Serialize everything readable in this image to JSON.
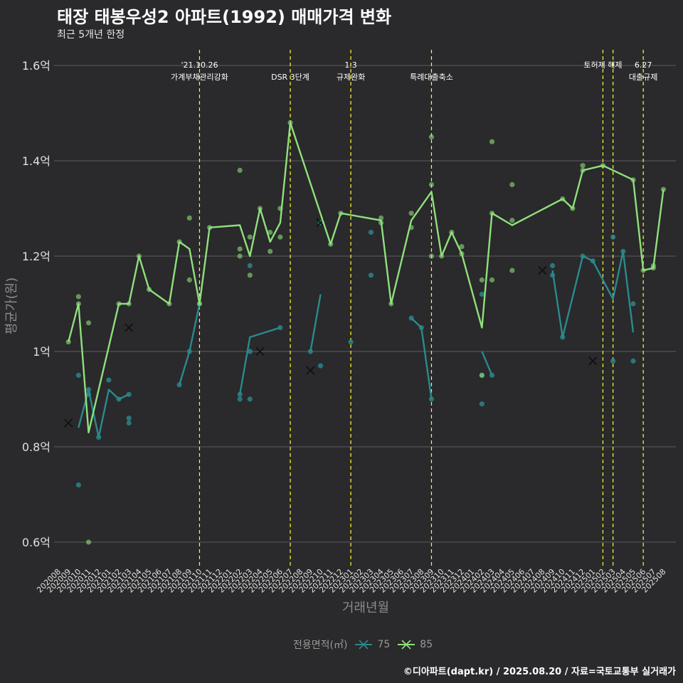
{
  "header": {
    "title": "태장 태봉우성2 아파트(1992) 매매가격 변화",
    "subtitle": "최근 5개년 한정"
  },
  "caption": "©디아파트(dapt.kr) / 2025.08.20 / 자료=국토교통부 실거래가",
  "colors": {
    "background": "#2a292b",
    "s75": "#2a8a8e",
    "s85": "#8fe07c",
    "event": "#ffff33",
    "grid": "#5c5c5c"
  },
  "chart_data": {
    "type": "line",
    "title": "태장 태봉우성2 아파트(1992) 매매가격 변화",
    "subtitle": "최근 5개년 한정",
    "xlabel": "거래년월",
    "ylabel": "평균가(원)",
    "ylim": [
      0.55,
      1.6
    ],
    "yticks": [
      0.6,
      0.8,
      1.0,
      1.2,
      1.4,
      1.6
    ],
    "ytick_labels": [
      "0.6억",
      "0.8억",
      "1억",
      "1.2억",
      "1.4억",
      "1.6억"
    ],
    "grid": true,
    "legend_title": "전용면적(㎡)",
    "legend_position": "bottom",
    "months": [
      "202008",
      "202009",
      "202010",
      "202011",
      "202012",
      "202101",
      "202102",
      "202103",
      "202104",
      "202105",
      "202106",
      "202107",
      "202108",
      "202109",
      "202110",
      "202111",
      "202112",
      "202201",
      "202202",
      "202203",
      "202204",
      "202205",
      "202206",
      "202207",
      "202208",
      "202209",
      "202210",
      "202211",
      "202212",
      "202301",
      "202302",
      "202303",
      "202304",
      "202305",
      "202306",
      "202307",
      "202308",
      "202309",
      "202310",
      "202311",
      "202312",
      "202401",
      "202402",
      "202403",
      "202404",
      "202405",
      "202406",
      "202407",
      "202408",
      "202409",
      "202410",
      "202411",
      "202412",
      "202501",
      "202502",
      "202503",
      "202504",
      "202505",
      "202506",
      "202507",
      "202508"
    ],
    "series": [
      {
        "name": "75",
        "line": [
          {
            "x": "202010",
            "y": 0.84
          },
          {
            "x": "202011",
            "y": 0.92
          },
          {
            "x": "202012",
            "y": 0.82
          },
          {
            "x": "202101",
            "y": 0.92
          },
          {
            "x": "202102",
            "y": 0.9
          },
          {
            "x": "202103",
            "y": 0.91
          },
          null,
          {
            "x": "202108",
            "y": 0.93
          },
          {
            "x": "202109",
            "y": 1.0
          },
          {
            "x": "202110",
            "y": 1.1
          },
          null,
          {
            "x": "202202",
            "y": 0.91
          },
          {
            "x": "202203",
            "y": 1.03
          },
          {
            "x": "202206",
            "y": 1.05
          },
          null,
          {
            "x": "202209",
            "y": 1.0
          },
          {
            "x": "202210",
            "y": 1.12
          },
          null,
          {
            "x": "202307",
            "y": 1.07
          },
          {
            "x": "202308",
            "y": 1.05
          },
          {
            "x": "202309",
            "y": 0.9
          },
          null,
          {
            "x": "202402",
            "y": 1.0
          },
          {
            "x": "202403",
            "y": 0.95
          },
          null,
          {
            "x": "202409",
            "y": 1.17
          },
          {
            "x": "202410",
            "y": 1.03
          },
          {
            "x": "202412",
            "y": 1.2
          },
          {
            "x": "202501",
            "y": 1.19
          },
          {
            "x": "202503",
            "y": 1.11
          },
          {
            "x": "202504",
            "y": 1.21
          },
          {
            "x": "202505",
            "y": 1.04
          }
        ],
        "points": [
          {
            "x": "202010",
            "y": 0.95
          },
          {
            "x": "202010",
            "y": 0.72
          },
          {
            "x": "202011",
            "y": 0.91
          },
          {
            "x": "202011",
            "y": 0.92
          },
          {
            "x": "202012",
            "y": 0.82
          },
          {
            "x": "202101",
            "y": 0.94
          },
          {
            "x": "202102",
            "y": 0.9
          },
          {
            "x": "202103",
            "y": 0.91
          },
          {
            "x": "202103",
            "y": 0.86
          },
          {
            "x": "202103",
            "y": 0.85
          },
          {
            "x": "202108",
            "y": 0.93
          },
          {
            "x": "202109",
            "y": 1.0
          },
          {
            "x": "202110",
            "y": 1.1
          },
          {
            "x": "202202",
            "y": 0.9
          },
          {
            "x": "202202",
            "y": 0.91
          },
          {
            "x": "202203",
            "y": 1.0
          },
          {
            "x": "202203",
            "y": 0.9
          },
          {
            "x": "202203",
            "y": 1.18
          },
          {
            "x": "202206",
            "y": 1.05
          },
          {
            "x": "202209",
            "y": 1.0
          },
          {
            "x": "202210",
            "y": 0.97
          },
          {
            "x": "202210",
            "y": 1.27
          },
          {
            "x": "202301",
            "y": 1.02
          },
          {
            "x": "202303",
            "y": 1.25
          },
          {
            "x": "202303",
            "y": 1.16
          },
          {
            "x": "202307",
            "y": 1.07
          },
          {
            "x": "202308",
            "y": 1.05
          },
          {
            "x": "202309",
            "y": 0.9
          },
          {
            "x": "202402",
            "y": 0.89
          },
          {
            "x": "202402",
            "y": 0.95
          },
          {
            "x": "202402",
            "y": 1.12
          },
          {
            "x": "202403",
            "y": 0.95
          },
          {
            "x": "202409",
            "y": 1.18
          },
          {
            "x": "202409",
            "y": 1.16
          },
          {
            "x": "202410",
            "y": 1.03
          },
          {
            "x": "202412",
            "y": 1.2
          },
          {
            "x": "202501",
            "y": 1.19
          },
          {
            "x": "202503",
            "y": 0.98
          },
          {
            "x": "202503",
            "y": 1.24
          },
          {
            "x": "202504",
            "y": 1.21
          },
          {
            "x": "202505",
            "y": 0.98
          },
          {
            "x": "202505",
            "y": 1.1
          }
        ],
        "crosses": [
          {
            "x": "202103",
            "y": 1.05
          },
          {
            "x": "202210",
            "y": 1.27
          },
          {
            "x": "202408",
            "y": 1.17
          }
        ]
      },
      {
        "name": "85",
        "line": [
          {
            "x": "202009",
            "y": 1.02
          },
          {
            "x": "202010",
            "y": 1.1
          },
          {
            "x": "202011",
            "y": 0.83
          },
          {
            "x": "202102",
            "y": 1.1
          },
          {
            "x": "202103",
            "y": 1.1
          },
          {
            "x": "202104",
            "y": 1.2
          },
          {
            "x": "202105",
            "y": 1.13
          },
          {
            "x": "202107",
            "y": 1.1
          },
          {
            "x": "202108",
            "y": 1.23
          },
          {
            "x": "202109",
            "y": 1.215
          },
          {
            "x": "202110",
            "y": 1.1
          },
          {
            "x": "202111",
            "y": 1.26
          },
          {
            "x": "202202",
            "y": 1.265
          },
          {
            "x": "202203",
            "y": 1.2
          },
          {
            "x": "202204",
            "y": 1.3
          },
          {
            "x": "202205",
            "y": 1.23
          },
          {
            "x": "202206",
            "y": 1.27
          },
          {
            "x": "202207",
            "y": 1.48
          },
          {
            "x": "202211",
            "y": 1.225
          },
          {
            "x": "202212",
            "y": 1.29
          },
          {
            "x": "202304",
            "y": 1.275
          },
          {
            "x": "202305",
            "y": 1.1
          },
          {
            "x": "202307",
            "y": 1.275
          },
          {
            "x": "202309",
            "y": 1.335
          },
          {
            "x": "202310",
            "y": 1.2
          },
          {
            "x": "202311",
            "y": 1.25
          },
          {
            "x": "202312",
            "y": 1.205
          },
          {
            "x": "202402",
            "y": 1.05
          },
          {
            "x": "202403",
            "y": 1.29
          },
          {
            "x": "202405",
            "y": 1.265
          },
          {
            "x": "202410",
            "y": 1.32
          },
          {
            "x": "202411",
            "y": 1.3
          },
          {
            "x": "202412",
            "y": 1.38
          },
          {
            "x": "202502",
            "y": 1.39
          },
          {
            "x": "202505",
            "y": 1.36
          },
          {
            "x": "202506",
            "y": 1.17
          },
          {
            "x": "202507",
            "y": 1.175
          },
          {
            "x": "202508",
            "y": 1.34
          }
        ],
        "points": [
          {
            "x": "202009",
            "y": 1.02
          },
          {
            "x": "202010",
            "y": 1.1
          },
          {
            "x": "202010",
            "y": 1.115
          },
          {
            "x": "202011",
            "y": 1.06
          },
          {
            "x": "202011",
            "y": 0.6
          },
          {
            "x": "202102",
            "y": 1.1
          },
          {
            "x": "202103",
            "y": 1.1
          },
          {
            "x": "202104",
            "y": 1.2
          },
          {
            "x": "202105",
            "y": 1.13
          },
          {
            "x": "202107",
            "y": 1.1
          },
          {
            "x": "202108",
            "y": 1.23
          },
          {
            "x": "202109",
            "y": 1.28
          },
          {
            "x": "202109",
            "y": 1.15
          },
          {
            "x": "202110",
            "y": 1.1
          },
          {
            "x": "202111",
            "y": 1.26
          },
          {
            "x": "202202",
            "y": 1.38
          },
          {
            "x": "202202",
            "y": 1.215
          },
          {
            "x": "202202",
            "y": 1.2
          },
          {
            "x": "202203",
            "y": 1.24
          },
          {
            "x": "202203",
            "y": 1.16
          },
          {
            "x": "202204",
            "y": 1.3
          },
          {
            "x": "202205",
            "y": 1.25
          },
          {
            "x": "202205",
            "y": 1.21
          },
          {
            "x": "202206",
            "y": 1.3
          },
          {
            "x": "202206",
            "y": 1.24
          },
          {
            "x": "202207",
            "y": 1.48
          },
          {
            "x": "202211",
            "y": 1.225
          },
          {
            "x": "202212",
            "y": 1.29
          },
          {
            "x": "202304",
            "y": 1.28
          },
          {
            "x": "202304",
            "y": 1.27
          },
          {
            "x": "202305",
            "y": 1.1
          },
          {
            "x": "202307",
            "y": 1.29
          },
          {
            "x": "202307",
            "y": 1.26
          },
          {
            "x": "202309",
            "y": 1.45
          },
          {
            "x": "202309",
            "y": 1.35
          },
          {
            "x": "202309",
            "y": 1.2
          },
          {
            "x": "202310",
            "y": 1.2
          },
          {
            "x": "202311",
            "y": 1.25
          },
          {
            "x": "202312",
            "y": 1.22
          },
          {
            "x": "202312",
            "y": 1.205
          },
          {
            "x": "202402",
            "y": 1.15
          },
          {
            "x": "202402",
            "y": 0.95
          },
          {
            "x": "202403",
            "y": 1.44
          },
          {
            "x": "202403",
            "y": 1.15
          },
          {
            "x": "202403",
            "y": 1.29
          },
          {
            "x": "202405",
            "y": 1.35
          },
          {
            "x": "202405",
            "y": 1.275
          },
          {
            "x": "202405",
            "y": 1.17
          },
          {
            "x": "202410",
            "y": 1.32
          },
          {
            "x": "202411",
            "y": 1.3
          },
          {
            "x": "202412",
            "y": 1.39
          },
          {
            "x": "202412",
            "y": 1.38
          },
          {
            "x": "202502",
            "y": 1.39
          },
          {
            "x": "202505",
            "y": 1.36
          },
          {
            "x": "202506",
            "y": 1.17
          },
          {
            "x": "202507",
            "y": 1.18
          },
          {
            "x": "202507",
            "y": 1.175
          },
          {
            "x": "202508",
            "y": 1.34
          }
        ],
        "crosses": [
          {
            "x": "202009",
            "y": 0.85
          },
          {
            "x": "202204",
            "y": 1.0
          },
          {
            "x": "202209",
            "y": 0.96
          },
          {
            "x": "202501",
            "y": 0.98
          }
        ]
      }
    ],
    "events": [
      {
        "x": "202110",
        "lines": [
          "'21.10.26",
          "가계부채관리강화"
        ]
      },
      {
        "x": "202207",
        "lines": [
          "",
          "DSR 3단계"
        ]
      },
      {
        "x": "202301",
        "lines": [
          "1.3",
          "규제완화"
        ]
      },
      {
        "x": "202309",
        "lines": [
          "",
          "특례대출축소"
        ]
      },
      {
        "x": "202502",
        "lines": [
          "토허제 해제"
        ]
      },
      {
        "x": "202503",
        "lines": [
          ""
        ]
      },
      {
        "x": "202506",
        "lines": [
          "6.27",
          "대출규제"
        ]
      }
    ]
  }
}
